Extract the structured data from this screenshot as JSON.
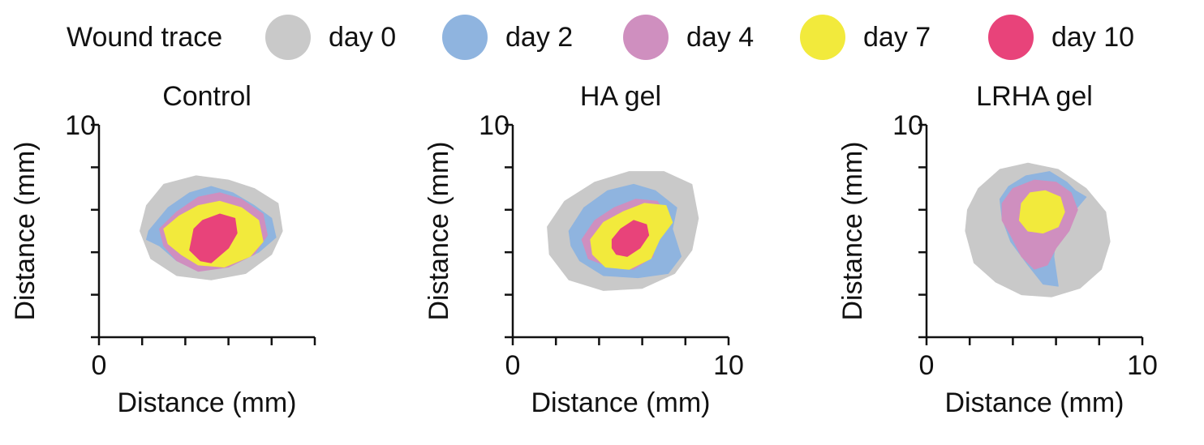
{
  "legend": {
    "title": "Wound trace",
    "items": [
      {
        "label": "day 0",
        "color": "#c9c9c9"
      },
      {
        "label": "day 2",
        "color": "#8fb4df"
      },
      {
        "label": "day 4",
        "color": "#cf8fbf"
      },
      {
        "label": "day 7",
        "color": "#f2ea3c"
      },
      {
        "label": "day 10",
        "color": "#e8437a"
      }
    ]
  },
  "chart_data": [
    {
      "type": "area",
      "title": "Control",
      "xlabel": "Distance (mm)",
      "ylabel": "Distance (mm)",
      "xlim": [
        0,
        10
      ],
      "ylim": [
        0,
        10
      ],
      "x_tick_labels": [
        "0",
        "",
        "",
        "",
        "",
        ""
      ],
      "y_tick_labels": [
        "",
        "",
        "",
        "",
        "",
        "10"
      ],
      "series": [
        {
          "name": "day 0",
          "color": "#c9c9c9",
          "points": [
            [
              2.2,
              6.2
            ],
            [
              3.0,
              7.2
            ],
            [
              4.5,
              7.6
            ],
            [
              6.0,
              7.4
            ],
            [
              7.2,
              7.0
            ],
            [
              8.3,
              6.3
            ],
            [
              8.5,
              5.0
            ],
            [
              8.0,
              3.9
            ],
            [
              6.8,
              3.0
            ],
            [
              5.2,
              2.7
            ],
            [
              3.6,
              2.9
            ],
            [
              2.4,
              3.7
            ],
            [
              1.9,
              5.0
            ]
          ]
        },
        {
          "name": "day 2",
          "color": "#8fb4df",
          "points": [
            [
              2.3,
              5.0
            ],
            [
              3.2,
              6.1
            ],
            [
              4.2,
              6.8
            ],
            [
              5.2,
              7.1
            ],
            [
              6.2,
              6.8
            ],
            [
              7.2,
              6.2
            ],
            [
              8.0,
              5.6
            ],
            [
              8.2,
              4.7
            ],
            [
              7.4,
              4.0
            ],
            [
              6.2,
              3.4
            ],
            [
              4.8,
              3.3
            ],
            [
              3.6,
              3.6
            ],
            [
              2.8,
              4.3
            ],
            [
              2.2,
              4.6
            ]
          ]
        },
        {
          "name": "day 4",
          "color": "#cf8fbf",
          "points": [
            [
              2.8,
              5.1
            ],
            [
              3.6,
              5.9
            ],
            [
              4.6,
              6.6
            ],
            [
              5.6,
              6.8
            ],
            [
              6.6,
              6.5
            ],
            [
              7.6,
              5.8
            ],
            [
              7.8,
              4.8
            ],
            [
              7.2,
              3.9
            ],
            [
              6.0,
              3.3
            ],
            [
              4.6,
              3.1
            ],
            [
              3.6,
              3.6
            ],
            [
              3.0,
              4.3
            ]
          ]
        },
        {
          "name": "day 7",
          "color": "#f2ea3c",
          "points": [
            [
              3.0,
              5.1
            ],
            [
              3.7,
              5.7
            ],
            [
              4.6,
              6.2
            ],
            [
              5.6,
              6.4
            ],
            [
              6.6,
              6.1
            ],
            [
              7.4,
              5.5
            ],
            [
              7.6,
              4.5
            ],
            [
              7.0,
              3.8
            ],
            [
              5.8,
              3.3
            ],
            [
              4.6,
              3.4
            ],
            [
              3.8,
              3.9
            ],
            [
              3.2,
              4.4
            ]
          ]
        },
        {
          "name": "day 10",
          "color": "#e8437a",
          "points": [
            [
              4.4,
              5.1
            ],
            [
              4.8,
              5.5
            ],
            [
              5.6,
              5.8
            ],
            [
              6.3,
              5.6
            ],
            [
              6.4,
              4.9
            ],
            [
              6.0,
              4.2
            ],
            [
              5.2,
              3.5
            ],
            [
              4.7,
              3.6
            ],
            [
              4.2,
              4.1
            ],
            [
              4.3,
              4.6
            ]
          ]
        }
      ]
    },
    {
      "type": "area",
      "title": "HA gel",
      "xlabel": "Distance (mm)",
      "ylabel": "Distance (mm)",
      "xlim": [
        0,
        10
      ],
      "ylim": [
        0,
        10
      ],
      "x_tick_labels": [
        "0",
        "",
        "",
        "",
        "",
        "10"
      ],
      "y_tick_labels": [
        "",
        "",
        "",
        "",
        "",
        "10"
      ],
      "series": [
        {
          "name": "day 0",
          "color": "#c9c9c9",
          "points": [
            [
              1.6,
              5.2
            ],
            [
              2.4,
              6.4
            ],
            [
              3.8,
              7.3
            ],
            [
              5.4,
              7.8
            ],
            [
              7.0,
              7.8
            ],
            [
              8.3,
              7.2
            ],
            [
              8.6,
              5.6
            ],
            [
              8.3,
              4.1
            ],
            [
              7.5,
              3.0
            ],
            [
              6.0,
              2.3
            ],
            [
              4.2,
              2.2
            ],
            [
              2.6,
              2.7
            ],
            [
              1.7,
              3.9
            ]
          ]
        },
        {
          "name": "day 2",
          "color": "#8fb4df",
          "points": [
            [
              2.6,
              5.0
            ],
            [
              3.3,
              6.1
            ],
            [
              4.4,
              6.9
            ],
            [
              5.6,
              7.2
            ],
            [
              6.6,
              6.9
            ],
            [
              7.6,
              6.1
            ],
            [
              7.4,
              5.1
            ],
            [
              7.8,
              3.8
            ],
            [
              7.2,
              3.0
            ],
            [
              5.8,
              2.8
            ],
            [
              4.2,
              2.9
            ],
            [
              3.1,
              3.6
            ],
            [
              2.7,
              4.3
            ]
          ]
        },
        {
          "name": "day 4",
          "color": "#cf8fbf",
          "points": [
            [
              3.2,
              4.6
            ],
            [
              3.8,
              5.5
            ],
            [
              4.7,
              6.1
            ],
            [
              5.7,
              6.5
            ],
            [
              6.7,
              6.4
            ],
            [
              7.2,
              5.6
            ],
            [
              6.6,
              4.8
            ],
            [
              6.5,
              3.8
            ],
            [
              5.6,
              3.2
            ],
            [
              4.5,
              3.3
            ],
            [
              3.5,
              3.7
            ]
          ]
        },
        {
          "name": "day 7",
          "color": "#f2ea3c",
          "points": [
            [
              3.6,
              4.6
            ],
            [
              4.2,
              5.4
            ],
            [
              5.1,
              5.9
            ],
            [
              6.1,
              6.3
            ],
            [
              7.1,
              6.2
            ],
            [
              7.4,
              5.4
            ],
            [
              6.8,
              4.6
            ],
            [
              6.4,
              3.7
            ],
            [
              5.4,
              3.2
            ],
            [
              4.3,
              3.3
            ],
            [
              3.7,
              3.9
            ]
          ]
        },
        {
          "name": "day 10",
          "color": "#e8437a",
          "points": [
            [
              4.6,
              4.6
            ],
            [
              5.0,
              5.1
            ],
            [
              5.6,
              5.5
            ],
            [
              6.2,
              5.3
            ],
            [
              6.3,
              4.8
            ],
            [
              5.9,
              4.2
            ],
            [
              5.3,
              3.8
            ],
            [
              4.8,
              3.9
            ],
            [
              4.6,
              4.2
            ]
          ]
        }
      ]
    },
    {
      "type": "area",
      "title": "LRHA gel",
      "xlabel": "Distance (mm)",
      "ylabel": "Distance (mm)",
      "xlim": [
        0,
        10
      ],
      "ylim": [
        0,
        10
      ],
      "x_tick_labels": [
        "0",
        "",
        "",
        "",
        "",
        "10"
      ],
      "y_tick_labels": [
        "",
        "",
        "",
        "",
        "",
        "10"
      ],
      "series": [
        {
          "name": "day 0",
          "color": "#c9c9c9",
          "points": [
            [
              2.4,
              7.0
            ],
            [
              3.4,
              7.9
            ],
            [
              4.7,
              8.2
            ],
            [
              6.1,
              7.9
            ],
            [
              7.4,
              7.0
            ],
            [
              8.3,
              5.9
            ],
            [
              8.5,
              4.5
            ],
            [
              8.1,
              3.2
            ],
            [
              7.1,
              2.3
            ],
            [
              5.8,
              1.9
            ],
            [
              4.4,
              2.0
            ],
            [
              3.2,
              2.6
            ],
            [
              2.2,
              3.5
            ],
            [
              1.8,
              5.0
            ],
            [
              1.9,
              6.0
            ]
          ]
        },
        {
          "name": "day 2",
          "color": "#8fb4df",
          "points": [
            [
              3.4,
              6.5
            ],
            [
              3.8,
              7.1
            ],
            [
              4.6,
              7.6
            ],
            [
              5.7,
              7.8
            ],
            [
              6.5,
              7.3
            ],
            [
              6.9,
              6.9
            ],
            [
              7.4,
              6.6
            ],
            [
              6.9,
              6.0
            ],
            [
              6.0,
              5.0
            ],
            [
              5.9,
              3.8
            ],
            [
              6.1,
              2.4
            ],
            [
              5.4,
              2.5
            ],
            [
              4.7,
              3.4
            ],
            [
              3.9,
              4.5
            ],
            [
              3.5,
              5.6
            ]
          ]
        },
        {
          "name": "day 4",
          "color": "#cf8fbf",
          "points": [
            [
              3.5,
              6.3
            ],
            [
              4.0,
              7.0
            ],
            [
              5.0,
              7.4
            ],
            [
              6.0,
              7.3
            ],
            [
              6.7,
              6.8
            ],
            [
              7.0,
              6.0
            ],
            [
              6.6,
              5.0
            ],
            [
              6.0,
              4.2
            ],
            [
              5.6,
              3.4
            ],
            [
              5.0,
              3.2
            ],
            [
              4.4,
              3.8
            ],
            [
              3.9,
              4.8
            ],
            [
              3.5,
              5.5
            ]
          ]
        },
        {
          "name": "day 7",
          "color": "#f2ea3c",
          "points": [
            [
              4.4,
              6.3
            ],
            [
              4.8,
              6.8
            ],
            [
              5.5,
              6.9
            ],
            [
              6.2,
              6.6
            ],
            [
              6.4,
              5.9
            ],
            [
              6.1,
              5.2
            ],
            [
              5.4,
              4.9
            ],
            [
              4.7,
              5.0
            ],
            [
              4.3,
              5.5
            ]
          ]
        }
      ]
    }
  ]
}
